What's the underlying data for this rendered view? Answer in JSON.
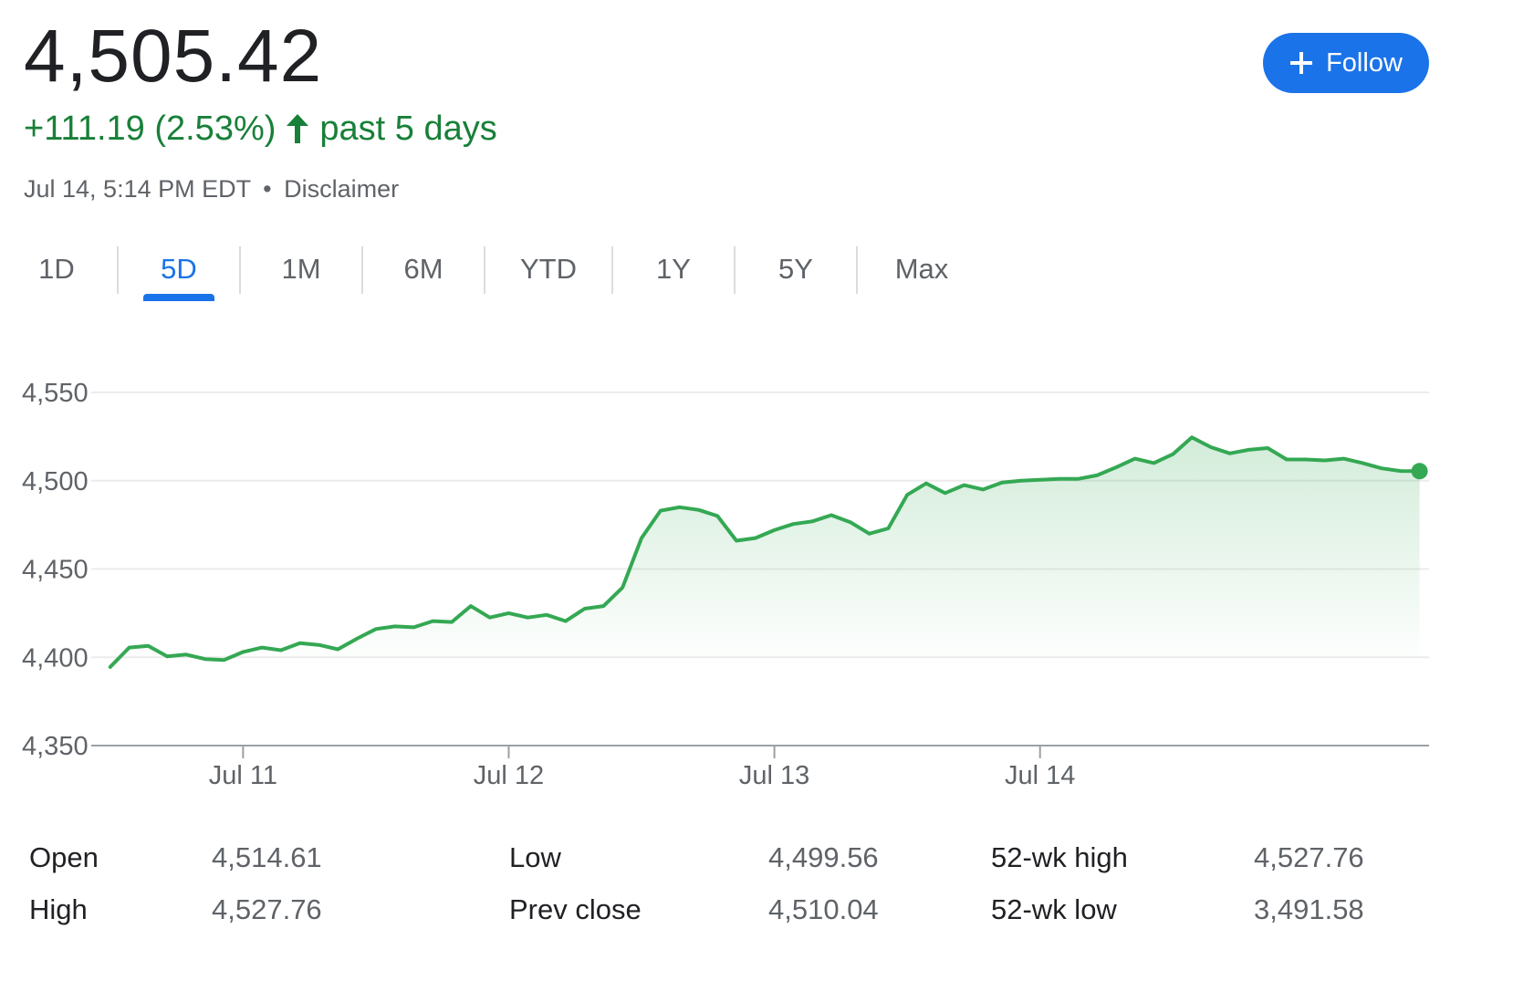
{
  "quote": {
    "price": "4,505.42",
    "change": "+111.19 (2.53%)",
    "period": "past 5 days",
    "timestamp": "Jul 14, 5:14 PM EDT",
    "separator": "•",
    "disclaimer": "Disclaimer",
    "direction_icon": "arrow-up-icon",
    "positive_color": "#188038"
  },
  "follow_button": {
    "label": "Follow",
    "icon": "plus-icon",
    "color": "#1a73e8"
  },
  "tabs": [
    {
      "label": "1D",
      "active": false
    },
    {
      "label": "5D",
      "active": true
    },
    {
      "label": "1M",
      "active": false
    },
    {
      "label": "6M",
      "active": false
    },
    {
      "label": "YTD",
      "active": false
    },
    {
      "label": "1Y",
      "active": false
    },
    {
      "label": "5Y",
      "active": false
    },
    {
      "label": "Max",
      "active": false
    }
  ],
  "chart_data": {
    "type": "area",
    "line_color": "#34a853",
    "grid": true,
    "ylim": [
      4350,
      4550
    ],
    "y_ticks": [
      "4,550",
      "4,500",
      "4,450",
      "4,400",
      "4,350"
    ],
    "y_tick_values": [
      4550,
      4500,
      4450,
      4400,
      4350
    ],
    "x_tick_labels": [
      "Jul 11",
      "Jul 12",
      "Jul 13",
      "Jul 14"
    ],
    "x_tick_values": [
      7,
      21,
      35,
      49
    ],
    "x": [
      0,
      1,
      2,
      3,
      4,
      5,
      6,
      7,
      8,
      9,
      10,
      11,
      12,
      13,
      14,
      15,
      16,
      17,
      18,
      19,
      20,
      21,
      22,
      23,
      24,
      25,
      26,
      27,
      28,
      29,
      30,
      31,
      32,
      33,
      34,
      35,
      36,
      37,
      38,
      39,
      40,
      41,
      42,
      43,
      44,
      45,
      46,
      47,
      48,
      49,
      50,
      51,
      52,
      53,
      54,
      55,
      56,
      57,
      58,
      59,
      60,
      61,
      62,
      63,
      64,
      65,
      66,
      67,
      68,
      69
    ],
    "xlim": [
      -1,
      69.5
    ],
    "series": [
      {
        "values": [
          4394.5,
          4405.5,
          4406.5,
          4400.5,
          4401.5,
          4399,
          4398.5,
          4403,
          4405.5,
          4404,
          4408,
          4407,
          4404.5,
          4410.5,
          4416,
          4417.5,
          4417,
          4420.5,
          4420,
          4429,
          4422.5,
          4425,
          4422.5,
          4424,
          4420.5,
          4427.5,
          4429,
          4439.5,
          4467.5,
          4483,
          4485,
          4483.5,
          4480,
          4466,
          4467.5,
          4472,
          4475.5,
          4477,
          4480.5,
          4476.5,
          4470,
          4473,
          4492,
          4498.5,
          4493,
          4497.5,
          4495,
          4499,
          4500,
          4500.5,
          4501,
          4501,
          4503,
          4507.5,
          4512.5,
          4510,
          4515,
          4524.5,
          4519,
          4515.5,
          4517.5,
          4518.5,
          4512,
          4512,
          4511.5,
          4512.5,
          4510,
          4507,
          4505.5,
          4505.42
        ]
      }
    ]
  },
  "stats": [
    {
      "label": "Open",
      "value": "4,514.61"
    },
    {
      "label": "High",
      "value": "4,527.76"
    },
    {
      "label": "Low",
      "value": "4,499.56"
    },
    {
      "label": "Prev close",
      "value": "4,510.04"
    },
    {
      "label": "52-wk high",
      "value": "4,527.76"
    },
    {
      "label": "52-wk low",
      "value": "3,491.58"
    }
  ]
}
